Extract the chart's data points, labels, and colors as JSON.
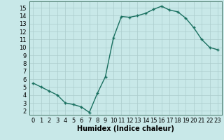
{
  "xlabel": "Humidex (Indice chaleur)",
  "x": [
    0,
    1,
    2,
    3,
    4,
    5,
    6,
    7,
    8,
    9,
    10,
    11,
    12,
    13,
    14,
    15,
    16,
    17,
    18,
    19,
    20,
    21,
    22,
    23
  ],
  "y": [
    5.5,
    5.0,
    4.5,
    4.0,
    3.0,
    2.8,
    2.5,
    1.8,
    4.2,
    6.3,
    11.2,
    13.9,
    13.8,
    14.0,
    14.3,
    14.8,
    15.2,
    14.7,
    14.5,
    13.7,
    12.5,
    11.0,
    10.0,
    9.7
  ],
  "line_color": "#1a7060",
  "marker": "+",
  "marker_color": "#1a7060",
  "bg_color": "#c8e8e8",
  "grid_color": "#aacccc",
  "xlim": [
    -0.5,
    23.5
  ],
  "ylim": [
    1.5,
    15.8
  ],
  "yticks": [
    2,
    3,
    4,
    5,
    6,
    7,
    8,
    9,
    10,
    11,
    12,
    13,
    14,
    15
  ],
  "xticks": [
    0,
    1,
    2,
    3,
    4,
    5,
    6,
    7,
    8,
    9,
    10,
    11,
    12,
    13,
    14,
    15,
    16,
    17,
    18,
    19,
    20,
    21,
    22,
    23
  ],
  "xlabel_fontsize": 7,
  "tick_fontsize": 6,
  "linewidth": 1.0,
  "markersize": 3
}
